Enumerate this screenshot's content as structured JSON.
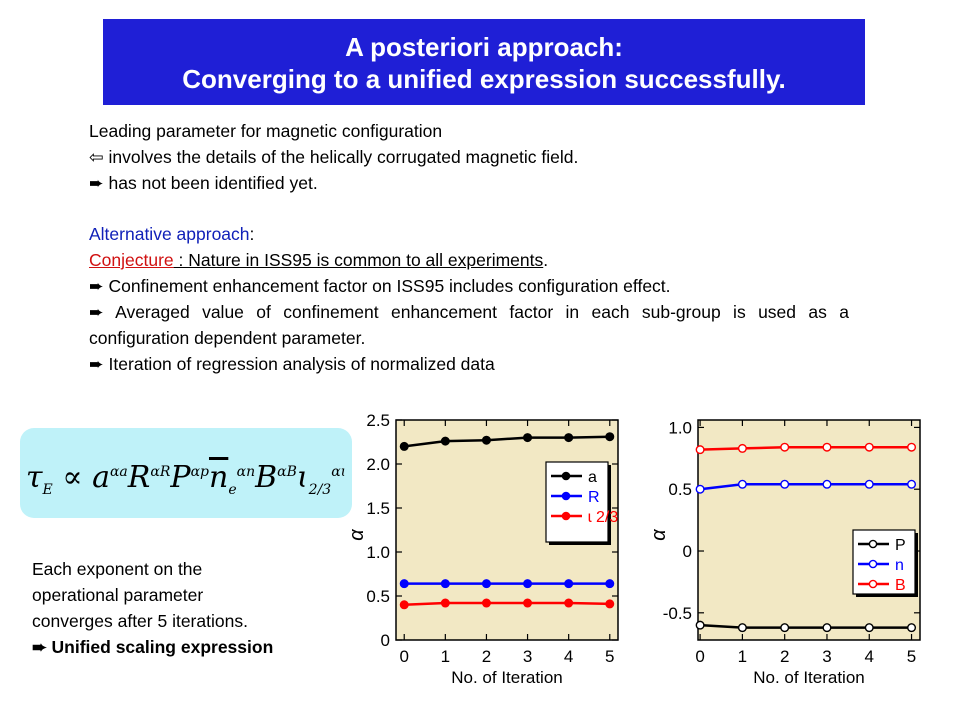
{
  "title": {
    "line1": "A posteriori approach:",
    "line2": "Converging to a unified expression successfully."
  },
  "intro": {
    "line1": "Leading parameter for magnetic configuration",
    "line2_arrow": "⇦",
    "line2": " involves the details of the helically corrugated magnetic field.",
    "line3_arrow": "➨",
    "line3": " has not been identified yet."
  },
  "approach": {
    "heading": "Alternative approach",
    "heading_colon": ":",
    "conjecture_label": "Conjecture",
    "conjecture_text": " : Nature in ISS95 is common to all experiments",
    "conjecture_end": ".",
    "bullets": [
      "Confinement enhancement factor on ISS95 includes configuration effect.",
      "Averaged value of confinement enhancement factor in each sub-group is used as a configuration dependent parameter.",
      "Iteration of regression analysis of normalized data"
    ],
    "arrow": "➨"
  },
  "formula": {
    "tau": "τ",
    "sub_E": "E",
    "prop": " ∝ ",
    "a": "a",
    "sup_a": "αa",
    "R": "R",
    "sup_R": "αR",
    "P": "P",
    "sup_p": "αp",
    "n": "n",
    "sub_e": "e",
    "sup_n": "αn",
    "B": "B",
    "sup_B": "αB",
    "iota": "ɩ",
    "sub_iota": "2/3",
    "sup_iota": "αɩ"
  },
  "note": {
    "line1": "Each exponent on the",
    "line2": "operational parameter",
    "line3": "converges after 5 iterations.",
    "arrow": "➨",
    "line4": " Unified scaling expression"
  },
  "colors": {
    "title_bg": "#1f1fd6",
    "formula_bg": "#bff2f9",
    "plot_bg": "#f2e8c4",
    "series_black": "#000000",
    "series_blue": "#0000ff",
    "series_red": "#ff0000",
    "heading_blue": "#1020b8",
    "conjecture_red": "#d01010"
  },
  "chart_data": [
    {
      "type": "line",
      "xlabel": "No. of Iteration",
      "ylabel": "α",
      "x": [
        0,
        1,
        2,
        3,
        4,
        5
      ],
      "xlim": [
        -0.2,
        5.2
      ],
      "ylim": [
        0,
        2.5
      ],
      "xticks": [
        "0",
        "1",
        "2",
        "3",
        "4",
        "5"
      ],
      "yticks": [
        "0",
        "0.5",
        "1.0",
        "1.5",
        "2.0",
        "2.5"
      ],
      "ytick_values": [
        0,
        0.5,
        1.0,
        1.5,
        2.0,
        2.5
      ],
      "marker": "filled",
      "legend_position": "right",
      "series": [
        {
          "name": "a",
          "color": "#000000",
          "values": [
            2.2,
            2.26,
            2.27,
            2.3,
            2.3,
            2.31
          ]
        },
        {
          "name": "R",
          "color": "#0000ff",
          "values": [
            0.64,
            0.64,
            0.64,
            0.64,
            0.64,
            0.64
          ]
        },
        {
          "name": "ɩ 2/3",
          "color": "#ff0000",
          "values": [
            0.4,
            0.42,
            0.42,
            0.42,
            0.42,
            0.41
          ]
        }
      ]
    },
    {
      "type": "line",
      "xlabel": "No. of Iteration",
      "ylabel": "α",
      "x": [
        0,
        1,
        2,
        3,
        4,
        5
      ],
      "xlim": [
        -0.05,
        5.2
      ],
      "ylim": [
        -0.72,
        1.06
      ],
      "xticks": [
        "0",
        "1",
        "2",
        "3",
        "4",
        "5"
      ],
      "yticks": [
        "-0.5",
        "0",
        "0.5",
        "1.0"
      ],
      "ytick_values": [
        -0.5,
        0,
        0.5,
        1.0
      ],
      "marker": "open",
      "legend_position": "bottom-right",
      "series": [
        {
          "name": "P",
          "color": "#000000",
          "values": [
            -0.6,
            -0.62,
            -0.62,
            -0.62,
            -0.62,
            -0.62
          ]
        },
        {
          "name": "n",
          "color": "#0000ff",
          "values": [
            0.5,
            0.54,
            0.54,
            0.54,
            0.54,
            0.54
          ]
        },
        {
          "name": "B",
          "color": "#ff0000",
          "values": [
            0.82,
            0.83,
            0.84,
            0.84,
            0.84,
            0.84
          ]
        }
      ]
    }
  ]
}
